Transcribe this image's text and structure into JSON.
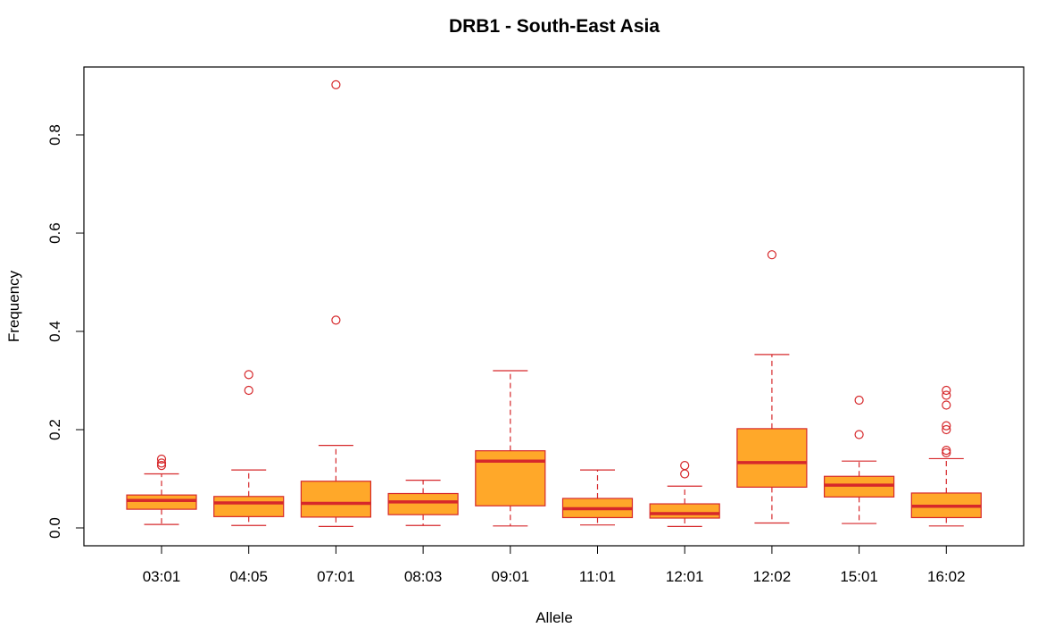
{
  "chart_data": {
    "type": "boxplot",
    "title": "DRB1 - South-East Asia",
    "xlabel": "Allele",
    "ylabel": "Frequency",
    "ylim": [
      -0.03,
      0.95
    ],
    "yticks": [
      "0.0",
      "0.2",
      "0.4",
      "0.6",
      "0.8"
    ],
    "ytick_values": [
      0.0,
      0.2,
      0.4,
      0.6,
      0.8
    ],
    "grid": false,
    "legend": "none",
    "colors": {
      "fill": "#ffa829",
      "stroke": "#d6282b",
      "median": "#d6282b",
      "axis": "#000000"
    },
    "categories": [
      "03:01",
      "04:05",
      "07:01",
      "08:03",
      "09:01",
      "11:01",
      "12:01",
      "12:02",
      "15:01",
      "16:02"
    ],
    "boxes": [
      {
        "label": "03:01",
        "whisker_low": 0.007,
        "q1": 0.038,
        "median": 0.056,
        "q3": 0.067,
        "whisker_high": 0.11,
        "outliers": [
          0.127,
          0.132,
          0.14
        ]
      },
      {
        "label": "04:05",
        "whisker_low": 0.005,
        "q1": 0.023,
        "median": 0.051,
        "q3": 0.064,
        "whisker_high": 0.118,
        "outliers": [
          0.28,
          0.312
        ]
      },
      {
        "label": "07:01",
        "whisker_low": 0.003,
        "q1": 0.022,
        "median": 0.05,
        "q3": 0.095,
        "whisker_high": 0.168,
        "outliers": [
          0.423,
          0.902
        ]
      },
      {
        "label": "08:03",
        "whisker_low": 0.005,
        "q1": 0.027,
        "median": 0.053,
        "q3": 0.07,
        "whisker_high": 0.097,
        "outliers": []
      },
      {
        "label": "09:01",
        "whisker_low": 0.004,
        "q1": 0.045,
        "median": 0.136,
        "q3": 0.157,
        "whisker_high": 0.32,
        "outliers": []
      },
      {
        "label": "11:01",
        "whisker_low": 0.006,
        "q1": 0.021,
        "median": 0.039,
        "q3": 0.06,
        "whisker_high": 0.118,
        "outliers": []
      },
      {
        "label": "12:01",
        "whisker_low": 0.003,
        "q1": 0.02,
        "median": 0.029,
        "q3": 0.049,
        "whisker_high": 0.085,
        "outliers": [
          0.11,
          0.127
        ]
      },
      {
        "label": "12:02",
        "whisker_low": 0.01,
        "q1": 0.083,
        "median": 0.133,
        "q3": 0.202,
        "whisker_high": 0.353,
        "outliers": [
          0.556
        ]
      },
      {
        "label": "15:01",
        "whisker_low": 0.009,
        "q1": 0.063,
        "median": 0.087,
        "q3": 0.105,
        "whisker_high": 0.136,
        "outliers": [
          0.19,
          0.26
        ]
      },
      {
        "label": "16:02",
        "whisker_low": 0.004,
        "q1": 0.021,
        "median": 0.044,
        "q3": 0.071,
        "whisker_high": 0.141,
        "outliers": [
          0.153,
          0.158,
          0.2,
          0.208,
          0.25,
          0.27,
          0.28
        ]
      }
    ]
  }
}
